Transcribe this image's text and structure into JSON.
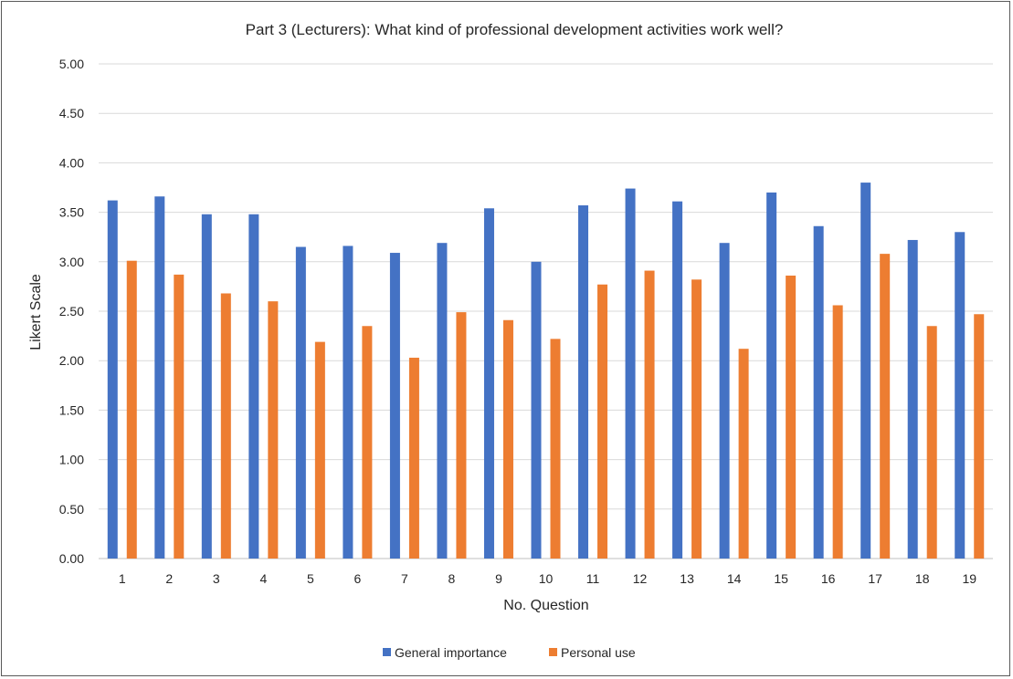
{
  "chart_data": {
    "type": "bar",
    "title": "Part 3 (Lecturers): What kind of professional development activities work well?",
    "xlabel": "No. Question",
    "ylabel": "Likert Scale",
    "ylim": [
      0,
      5
    ],
    "yticks": [
      "0.00",
      "0.50",
      "1.00",
      "1.50",
      "2.00",
      "2.50",
      "3.00",
      "3.50",
      "4.00",
      "4.50",
      "5.00"
    ],
    "grid": true,
    "legend_position": "bottom",
    "categories": [
      "1",
      "2",
      "3",
      "4",
      "5",
      "6",
      "7",
      "8",
      "9",
      "10",
      "11",
      "12",
      "13",
      "14",
      "15",
      "16",
      "17",
      "18",
      "19"
    ],
    "series": [
      {
        "name": "General importance",
        "color": "#4472C4",
        "values": [
          3.62,
          3.66,
          3.48,
          3.48,
          3.15,
          3.16,
          3.09,
          3.19,
          3.54,
          3.0,
          3.57,
          3.74,
          3.61,
          3.19,
          3.7,
          3.36,
          3.8,
          3.22,
          3.3
        ]
      },
      {
        "name": "Personal use",
        "color": "#ED7D31",
        "values": [
          3.01,
          2.87,
          2.68,
          2.6,
          2.19,
          2.35,
          2.03,
          2.49,
          2.41,
          2.22,
          2.77,
          2.91,
          2.82,
          2.12,
          2.86,
          2.56,
          3.08,
          2.35,
          2.47
        ]
      }
    ]
  }
}
